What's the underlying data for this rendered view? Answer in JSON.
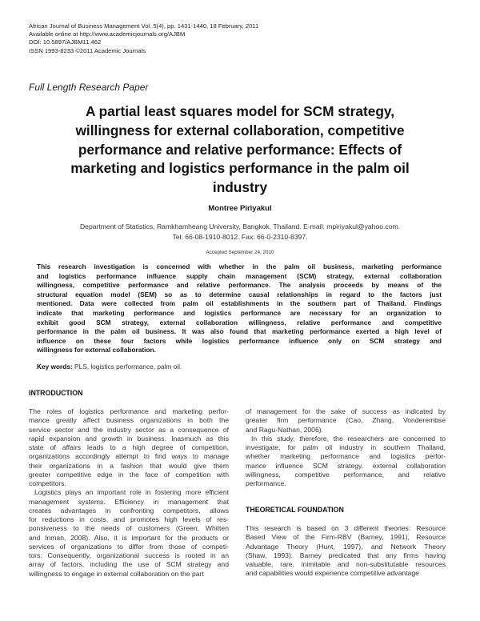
{
  "header": {
    "lines": [
      "African Journal of Business Management Vol. 5(4), pp. 1431-1440, 18 February, 2011",
      "Available online at http://www.academicjournals.org/AJBM",
      "DOI: 10.5897/AJBM11.462",
      "ISSN 1993-8233 ©2011 Academic Journals"
    ]
  },
  "paper_type": "Full Length Research Paper",
  "title": {
    "lines": [
      "A partial least squares model for SCM strategy,",
      "willingness for external collaboration, competitive",
      "performance and relative performance: Effects of",
      "marketing and logistics performance in the palm oil",
      "industry"
    ]
  },
  "author": "Montree Piriyakul",
  "affiliation": {
    "line1": "Department of Statistics, Ramkhamheang University, Bangkok, Thailand. E-mail: mpiriyakul@yahoo.com.",
    "line2": "Tel: 66-08-1910-8012. Fax: 66-0-2310-8397."
  },
  "accepted": "Accepted September 24, 2010",
  "abstract": {
    "lines": [
      "This research investigation is concerned with whether in the palm oil business, marketing performance",
      "and logistics performance influence supply chain management (SCM) strategy, external collaboration",
      "willingness, competitive performance and relative performance. The analysis proceeds by means of the",
      "structural equation model (SEM) so as to determine causal relationships in regard to the factors just",
      "mentioned. Data were collected from palm oil establishments in the southern part of Thailand. Findings",
      "indicate that marketing performance and logistics performance are necessary for an organization to",
      "exhibit good SCM strategy, external collaboration willingness, relative performance and competitive",
      "performance in the palm oil business. It was also found that marketing performance exerted a high level of",
      "influence on these four factors while logistics performance influence only on SCM strategy and",
      "willingness for external collaboration."
    ]
  },
  "keywords": {
    "label": "Key words:",
    "value": "PLS, logistics performance, palm oil."
  },
  "introduction": {
    "heading": "INTRODUCTION",
    "lines": [
      "The roles of logistics performance and marketing perfor-",
      "mance greatly affect business organizations in both the",
      "service sector and the industry sector as a consequence of",
      "rapid expansion and growth in business. Inasmuch as this",
      "state of affairs leads to a high degree of competition,",
      "organizations accordingly attempt to find ways to manage",
      "their organizations in a fashion that would give them",
      "greater competitive edge in the face of competition with",
      "competitors.",
      "Logistics plays an important role in fostering more efficient",
      "management systems. Efficiency in management that",
      "creates advantages in confronting competitors, allows",
      "for reductions in costs, and promotes high levels of res-",
      "ponsiveness to the needs of customers (Green, Whitten",
      "and Inman, 2008). Also, it is important for the products or",
      "services of organizations to differ from those of competi-",
      "tors. Consequently, organizational success is rooted in an",
      "array of factors, including the use of SCM strategy and",
      "willingness to engage in external collaboration on the part"
    ],
    "continued_lines": [
      "of management for the sake of success as indicated by",
      "greater firm performance (Cao, Zhang, Vonderembse",
      "and Ragu-Nathan, 2006).",
      "In this study, therefore, the researchers are concerned to",
      "investigate, for palm oil industry in southern Thailand,",
      "whether marketing performance and logistics perfor-",
      "mance influence SCM strategy, external collaboration",
      "willingness, competitive performance, and relative",
      "performance."
    ]
  },
  "theoretical_foundation": {
    "heading": "THEORETICAL FOUNDATION",
    "lines": [
      "This research is based on 3 different theories: Resource",
      "Based View of the Firm-RBV (Barney, 1991), Resource",
      "Advantage Theory (Hunt, 1997), and Network Theory",
      "(Shaw, 1993). Barney predicated that any firms having",
      "valuable, rare, inimitable and non-substitutable resources",
      "and capabilities would experience competitive advantage"
    ]
  }
}
